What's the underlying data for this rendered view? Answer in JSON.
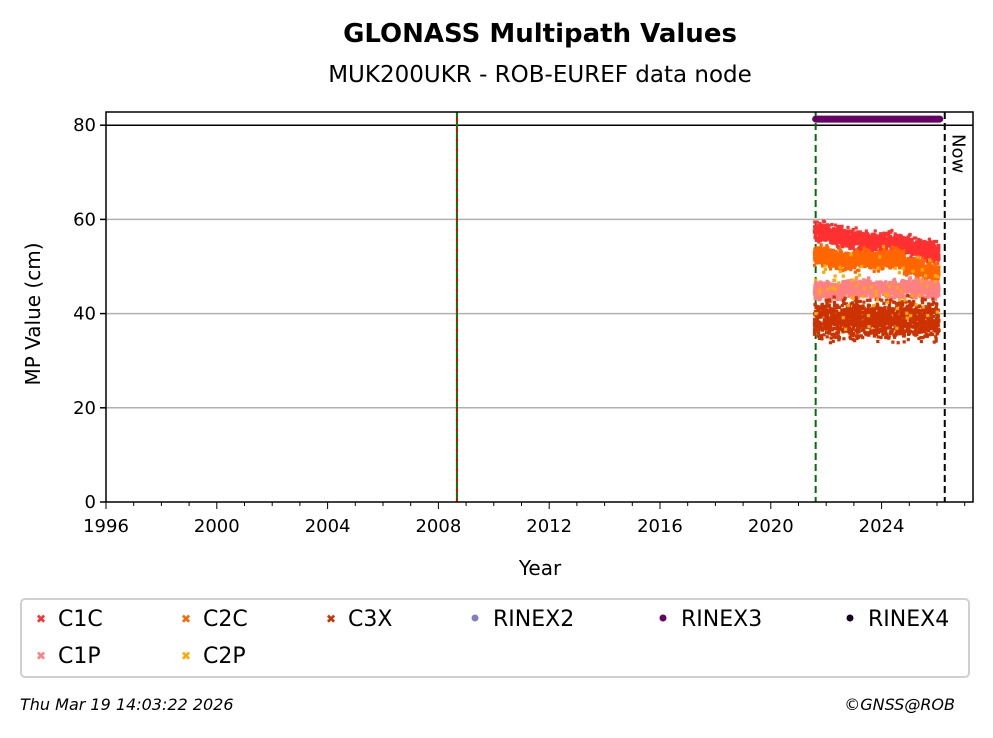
{
  "chart_data": {
    "type": "scatter",
    "title": "GLONASS Multipath Values",
    "subtitle": "MUK200UKR - ROB-EUREF data node",
    "xlabel": "Year",
    "ylabel": "MP Value (cm)",
    "xlim": [
      1996,
      2027.3
    ],
    "ylim": [
      0,
      82.8
    ],
    "xticks": [
      "1996",
      "2000",
      "2004",
      "2008",
      "2012",
      "2016",
      "2020",
      "2024"
    ],
    "xtick_values": [
      1996,
      2000,
      2004,
      2008,
      2012,
      2016,
      2020,
      2024
    ],
    "yticks": [
      "0",
      "20",
      "40",
      "60",
      "80"
    ],
    "ytick_values": [
      0,
      20,
      40,
      60,
      80
    ],
    "grid": "y",
    "now_label": "Now",
    "reference_line_y": 80,
    "vertical_lines": [
      {
        "x": 2008.67,
        "style": "red-green-dashed"
      },
      {
        "x": 2021.62,
        "style": "green-dashed"
      },
      {
        "x": 2026.28,
        "style": "black-dashed",
        "label": "Now"
      }
    ],
    "x": [
      2021.7,
      2021.95,
      2022.2,
      2022.45,
      2022.7,
      2022.95,
      2023.2,
      2023.45,
      2023.7,
      2023.95,
      2024.2,
      2024.45,
      2024.7,
      2024.95,
      2025.2,
      2025.45,
      2025.7,
      2025.95
    ],
    "series": [
      {
        "name": "C1C",
        "color": "#ff3030",
        "marker": "x",
        "spread": 1.6,
        "values": [
          57.5,
          57.2,
          56.8,
          56.3,
          56.0,
          55.6,
          55.5,
          55.3,
          55.2,
          55.0,
          55.2,
          55.1,
          54.8,
          54.5,
          54.0,
          53.7,
          53.3,
          52.8
        ]
      },
      {
        "name": "C2C",
        "color": "#ff6600",
        "marker": "x",
        "spread": 1.5,
        "values": [
          52.5,
          52.3,
          51.8,
          51.5,
          51.2,
          51.0,
          51.5,
          51.6,
          51.4,
          51.3,
          51.8,
          51.9,
          51.5,
          50.0,
          49.8,
          49.5,
          49.0,
          48.8
        ]
      },
      {
        "name": "C1P",
        "color": "#ff8080",
        "marker": "x",
        "spread": 1.4,
        "values": [
          45.0,
          45.2,
          45.0,
          44.8,
          45.3,
          45.1,
          45.2,
          45.5,
          45.0,
          45.4,
          45.3,
          45.2,
          45.0,
          45.5,
          45.2,
          45.0,
          45.3,
          45.1
        ]
      },
      {
        "name": "C3X",
        "color": "#cc3300",
        "marker": "x",
        "spread": 3.2,
        "values": [
          38.5,
          39.0,
          38.8,
          38.5,
          38.7,
          39.0,
          38.6,
          38.8,
          38.5,
          38.9,
          38.7,
          38.6,
          38.8,
          39.0,
          38.7,
          38.5,
          38.8,
          38.6
        ]
      },
      {
        "name": "C2P",
        "color": "#ffaa00",
        "marker": "x",
        "spread": 6.0,
        "values": [
          45,
          44,
          43,
          45,
          44,
          46,
          45,
          44,
          46,
          45,
          44,
          45,
          46,
          44,
          45,
          44,
          45,
          44
        ]
      }
    ],
    "rinex_bars": [
      {
        "name": "RINEX2",
        "color": "#8080c0",
        "y": 81.3,
        "x_range": null
      },
      {
        "name": "RINEX3",
        "color": "#660066",
        "y": 81.3,
        "x_range": [
          2021.62,
          2026.1
        ]
      },
      {
        "name": "RINEX4",
        "color": "#1a0022",
        "y": 81.3,
        "x_range": null
      }
    ],
    "legend": {
      "placement": "bottom",
      "entries": [
        {
          "label": "C1C",
          "color": "#ff3030",
          "marker": "x"
        },
        {
          "label": "C2C",
          "color": "#ff6600",
          "marker": "x"
        },
        {
          "label": "C3X",
          "color": "#cc3300",
          "marker": "x"
        },
        {
          "label": "RINEX2",
          "color": "#8080c0",
          "marker": "dot"
        },
        {
          "label": "RINEX3",
          "color": "#660066",
          "marker": "dot"
        },
        {
          "label": "RINEX4",
          "color": "#1a0022",
          "marker": "dot"
        },
        {
          "label": "C1P",
          "color": "#ff8080",
          "marker": "x"
        },
        {
          "label": "C2P",
          "color": "#ffaa00",
          "marker": "x"
        }
      ]
    }
  },
  "footer": {
    "timestamp": "Thu Mar 19 14:03:22 2026",
    "copyright": "©GNSS@ROB"
  }
}
